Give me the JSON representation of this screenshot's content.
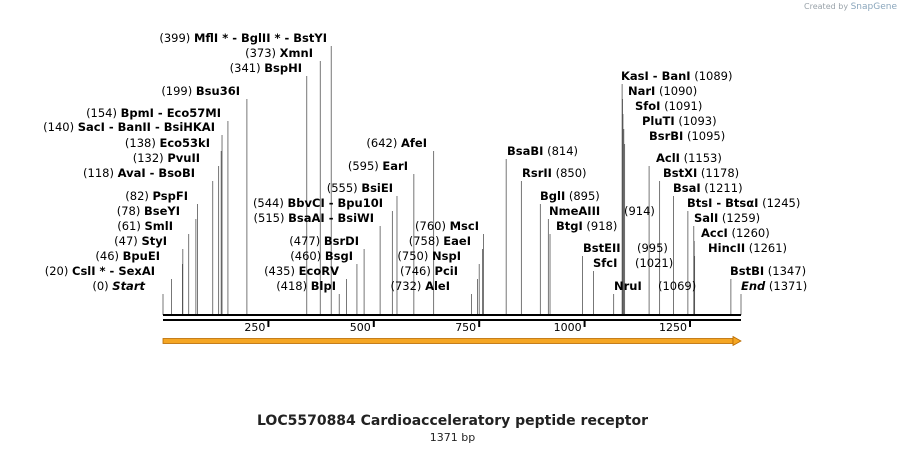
{
  "credit": {
    "prefix": "Created by",
    "brand": "SnapGene"
  },
  "sequence": {
    "name": "LOC5570884 Cardioacceleratory peptide receptor",
    "length_label": "1371 bp",
    "length": 1371
  },
  "axis": {
    "ticks": [
      250,
      500,
      750,
      1000,
      1250
    ]
  },
  "colors": {
    "feature_arrow": "#f5a623",
    "feature_outline": "#b86a00",
    "ruler": "#000000",
    "leader": "#555555"
  },
  "sites": [
    {
      "pos": 0,
      "names": [
        "Start"
      ],
      "italic": true,
      "star": false
    },
    {
      "pos": 20,
      "names": [
        "CslI",
        "SexAI"
      ],
      "italic": false,
      "star": true
    },
    {
      "pos": 46,
      "names": [
        "BpuEI"
      ],
      "italic": false,
      "star": false
    },
    {
      "pos": 47,
      "names": [
        "StyI"
      ],
      "italic": false,
      "star": false
    },
    {
      "pos": 61,
      "names": [
        "SmlI"
      ],
      "italic": false,
      "star": false
    },
    {
      "pos": 78,
      "names": [
        "BseYI"
      ],
      "italic": false,
      "star": false
    },
    {
      "pos": 82,
      "names": [
        "PspFI"
      ],
      "italic": false,
      "star": false
    },
    {
      "pos": 118,
      "names": [
        "AvaI",
        "BsoBI"
      ],
      "italic": false,
      "star": false
    },
    {
      "pos": 132,
      "names": [
        "PvuII"
      ],
      "italic": false,
      "star": false
    },
    {
      "pos": 138,
      "names": [
        "Eco53kI"
      ],
      "italic": false,
      "star": false
    },
    {
      "pos": 140,
      "names": [
        "SacI",
        "BanII",
        "BsiHKAI"
      ],
      "italic": false,
      "star": false
    },
    {
      "pos": 154,
      "names": [
        "BpmI",
        "Eco57MI"
      ],
      "italic": false,
      "star": false
    },
    {
      "pos": 199,
      "names": [
        "Bsu36I"
      ],
      "italic": false,
      "star": false
    },
    {
      "pos": 341,
      "names": [
        "BspHI"
      ],
      "italic": false,
      "star": false
    },
    {
      "pos": 373,
      "names": [
        "XmnI"
      ],
      "italic": false,
      "star": false
    },
    {
      "pos": 399,
      "names": [
        "MflI",
        "BglII",
        "BstYI"
      ],
      "italic": false,
      "star": true
    },
    {
      "pos": 418,
      "names": [
        "BlpI"
      ],
      "italic": false,
      "star": false
    },
    {
      "pos": 435,
      "names": [
        "EcoRV"
      ],
      "italic": false,
      "star": false
    },
    {
      "pos": 460,
      "names": [
        "BsgI"
      ],
      "italic": false,
      "star": false
    },
    {
      "pos": 477,
      "names": [
        "BsrDI"
      ],
      "italic": false,
      "star": false
    },
    {
      "pos": 515,
      "names": [
        "BsaAI",
        "BsiWI"
      ],
      "italic": false,
      "star": false
    },
    {
      "pos": 544,
      "names": [
        "BbvCI",
        "Bpu10I"
      ],
      "italic": false,
      "star": false
    },
    {
      "pos": 555,
      "names": [
        "BsiEI"
      ],
      "italic": false,
      "star": false
    },
    {
      "pos": 595,
      "names": [
        "EarI"
      ],
      "italic": false,
      "star": false
    },
    {
      "pos": 642,
      "names": [
        "AfeI"
      ],
      "italic": false,
      "star": false
    },
    {
      "pos": 732,
      "names": [
        "AleI"
      ],
      "italic": false,
      "star": false
    },
    {
      "pos": 746,
      "names": [
        "PciI"
      ],
      "italic": false,
      "star": false
    },
    {
      "pos": 750,
      "names": [
        "NspI"
      ],
      "italic": false,
      "star": false
    },
    {
      "pos": 758,
      "names": [
        "EaeI"
      ],
      "italic": false,
      "star": false
    },
    {
      "pos": 760,
      "names": [
        "MscI"
      ],
      "italic": false,
      "star": false
    },
    {
      "pos": 814,
      "names": [
        "BsaBI"
      ],
      "italic": false,
      "star": false
    },
    {
      "pos": 850,
      "names": [
        "RsrII"
      ],
      "italic": false,
      "star": false
    },
    {
      "pos": 895,
      "names": [
        "BglI"
      ],
      "italic": false,
      "star": false
    },
    {
      "pos": 914,
      "names": [
        "NmeAIII"
      ],
      "italic": false,
      "star": false
    },
    {
      "pos": 918,
      "names": [
        "BtgI"
      ],
      "italic": false,
      "star": false
    },
    {
      "pos": 995,
      "names": [
        "BstEII"
      ],
      "italic": false,
      "star": false
    },
    {
      "pos": 1021,
      "names": [
        "SfcI"
      ],
      "italic": false,
      "star": false
    },
    {
      "pos": 1069,
      "names": [
        "NruI"
      ],
      "italic": false,
      "star": false
    },
    {
      "pos": 1089,
      "names": [
        "KasI",
        "BanI"
      ],
      "italic": false,
      "star": false
    },
    {
      "pos": 1090,
      "names": [
        "NarI"
      ],
      "italic": false,
      "star": false
    },
    {
      "pos": 1091,
      "names": [
        "SfoI"
      ],
      "italic": false,
      "star": false
    },
    {
      "pos": 1093,
      "names": [
        "PluTI"
      ],
      "italic": false,
      "star": false
    },
    {
      "pos": 1095,
      "names": [
        "BsrBI"
      ],
      "italic": false,
      "star": false
    },
    {
      "pos": 1153,
      "names": [
        "AclI"
      ],
      "italic": false,
      "star": false
    },
    {
      "pos": 1178,
      "names": [
        "BstXI"
      ],
      "italic": false,
      "star": false
    },
    {
      "pos": 1211,
      "names": [
        "BsaI"
      ],
      "italic": false,
      "star": false
    },
    {
      "pos": 1245,
      "names": [
        "BtsI",
        "BtsαI"
      ],
      "italic": false,
      "star": false
    },
    {
      "pos": 1259,
      "names": [
        "SalI"
      ],
      "italic": false,
      "star": false
    },
    {
      "pos": 1260,
      "names": [
        "AccI"
      ],
      "italic": false,
      "star": false
    },
    {
      "pos": 1261,
      "names": [
        "HincII"
      ],
      "italic": false,
      "star": false
    },
    {
      "pos": 1347,
      "names": [
        "BstBI"
      ],
      "italic": false,
      "star": false
    },
    {
      "pos": 1371,
      "names": [
        "End"
      ],
      "italic": true,
      "star": false
    }
  ]
}
